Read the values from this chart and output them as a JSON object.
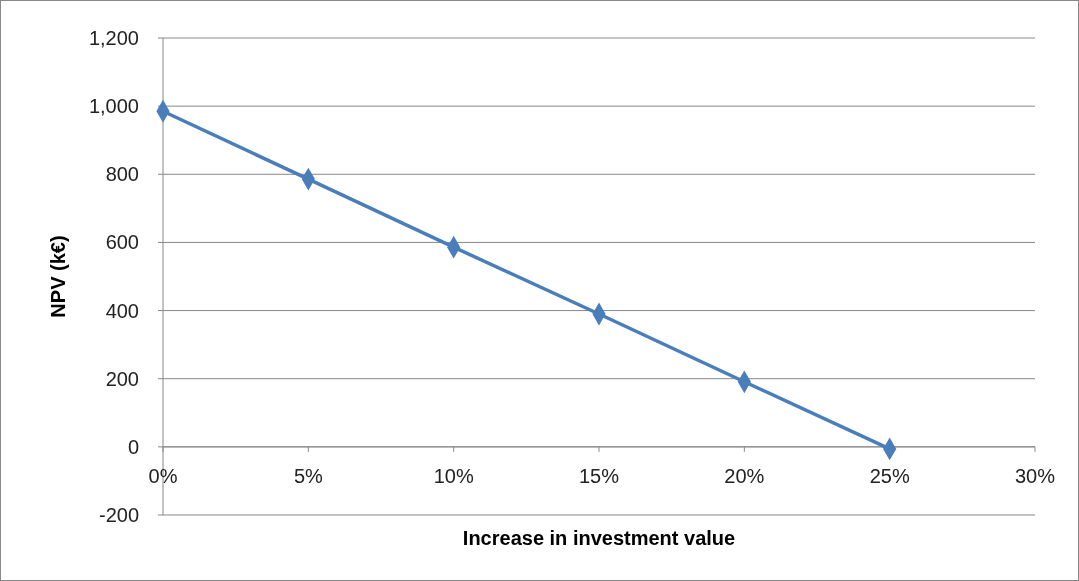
{
  "chart_data": {
    "type": "line",
    "xlabel": "Increase in investment value",
    "ylabel": "NPV (k€)",
    "x": [
      0,
      5,
      10,
      15,
      20,
      25
    ],
    "series": [
      {
        "color": "#4a7ebb",
        "values": [
          985,
          786,
          586,
          390,
          191,
          -6
        ]
      }
    ],
    "xlim": [
      0,
      30
    ],
    "xticks": [
      {
        "value": 0,
        "label": "0%"
      },
      {
        "value": 5,
        "label": "5%"
      },
      {
        "value": 10,
        "label": "10%"
      },
      {
        "value": 15,
        "label": "15%"
      },
      {
        "value": 20,
        "label": "20%"
      },
      {
        "value": 25,
        "label": "25%"
      },
      {
        "value": 30,
        "label": "30%"
      }
    ],
    "ylim": [
      -200,
      1200
    ],
    "yticks": [
      {
        "value": -200,
        "label": "-200"
      },
      {
        "value": 0,
        "label": "0"
      },
      {
        "value": 200,
        "label": "200"
      },
      {
        "value": 400,
        "label": "400"
      },
      {
        "value": 600,
        "label": "600"
      },
      {
        "value": 800,
        "label": "800"
      },
      {
        "value": 1000,
        "label": "1,000"
      },
      {
        "value": 1200,
        "label": "1,200"
      }
    ],
    "grid": "y",
    "marker": "diamond",
    "line_style": "solid"
  }
}
